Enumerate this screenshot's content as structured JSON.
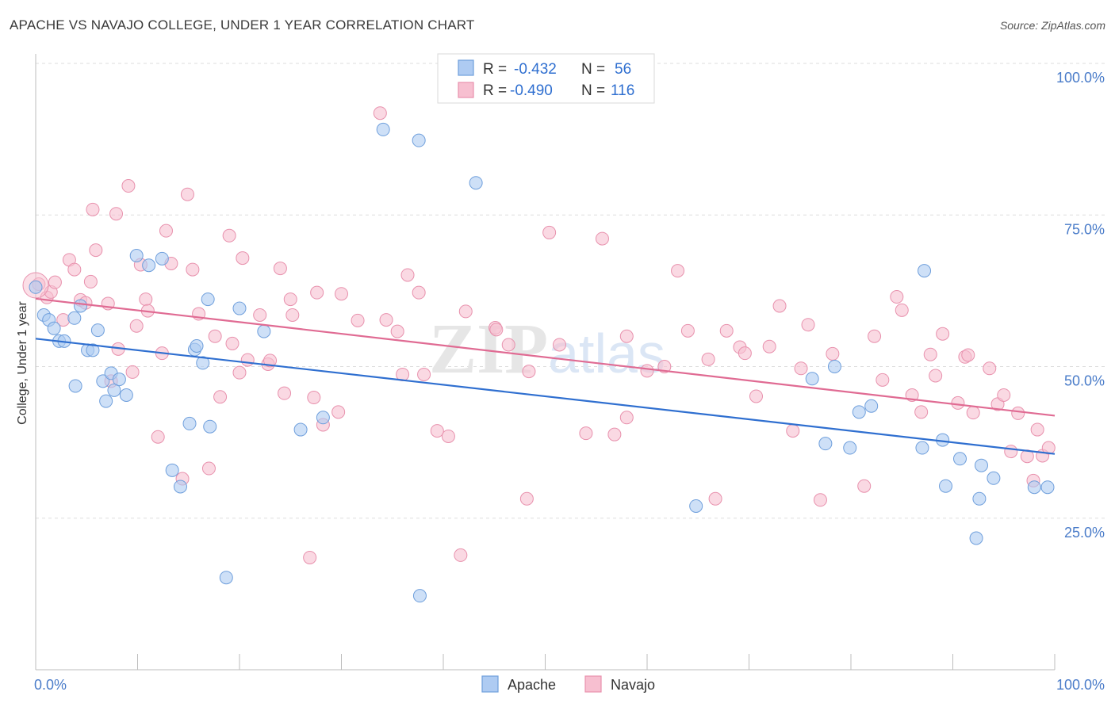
{
  "title": "APACHE VS NAVAJO COLLEGE, UNDER 1 YEAR CORRELATION CHART",
  "source": "Source: ZipAtlas.com",
  "watermark": "ZIPatlas",
  "colors": {
    "apache_fill": "#aecbf2",
    "apache_stroke": "#6f9fdc",
    "apache_line": "#2f6fd0",
    "navajo_fill": "#f7bfd0",
    "navajo_stroke": "#e891ad",
    "navajo_line": "#e06b93",
    "tick_text": "#4a7cc9",
    "grid": "#dddddd"
  },
  "legend": {
    "rows": [
      {
        "r_label": "R =",
        "r_value": "-0.432",
        "n_label": "N =",
        "n_value": "56"
      },
      {
        "r_label": "R =",
        "r_value": "-0.490",
        "n_label": "N =",
        "n_value": "116"
      }
    ]
  },
  "chart_data": {
    "type": "scatter",
    "title": "APACHE VS NAVAJO COLLEGE, UNDER 1 YEAR CORRELATION CHART",
    "xlabel": "",
    "ylabel": "College, Under 1 year",
    "xlim": [
      0,
      100
    ],
    "ylim": [
      0,
      100
    ],
    "x_tick_labels": [
      "0.0%",
      "100.0%"
    ],
    "y_tick_labels": [
      "100.0%",
      "75.0%",
      "50.0%",
      "25.0%"
    ],
    "y_ticks": [
      100,
      75,
      50,
      25
    ],
    "grid": true,
    "legend_position": "top-center",
    "series": [
      {
        "name": "Apache",
        "trend": {
          "x": [
            0,
            100
          ],
          "y": [
            54.6,
            35.6
          ]
        },
        "points": [
          [
            0.0,
            63.1
          ],
          [
            0.8,
            58.5
          ],
          [
            1.3,
            57.7
          ],
          [
            1.8,
            56.3
          ],
          [
            2.3,
            54.2
          ],
          [
            2.8,
            54.2
          ],
          [
            3.8,
            58.0
          ],
          [
            3.9,
            46.8
          ],
          [
            4.4,
            60.0
          ],
          [
            5.1,
            52.7
          ],
          [
            5.6,
            52.7
          ],
          [
            6.1,
            56.0
          ],
          [
            6.6,
            47.6
          ],
          [
            6.9,
            44.3
          ],
          [
            7.4,
            48.9
          ],
          [
            7.7,
            46.1
          ],
          [
            8.2,
            47.9
          ],
          [
            8.9,
            45.3
          ],
          [
            9.9,
            68.3
          ],
          [
            11.1,
            66.7
          ],
          [
            12.4,
            67.8
          ],
          [
            13.4,
            32.9
          ],
          [
            14.2,
            30.2
          ],
          [
            15.1,
            40.6
          ],
          [
            15.6,
            52.8
          ],
          [
            15.8,
            53.4
          ],
          [
            16.4,
            50.6
          ],
          [
            16.9,
            61.1
          ],
          [
            17.1,
            40.1
          ],
          [
            18.7,
            15.2
          ],
          [
            20.0,
            59.6
          ],
          [
            22.4,
            55.8
          ],
          [
            26.0,
            39.6
          ],
          [
            28.2,
            41.6
          ],
          [
            34.1,
            89.1
          ],
          [
            37.6,
            87.3
          ],
          [
            37.7,
            12.2
          ],
          [
            43.2,
            80.3
          ],
          [
            64.8,
            27.0
          ],
          [
            76.2,
            48.0
          ],
          [
            77.5,
            37.3
          ],
          [
            78.4,
            50.0
          ],
          [
            79.9,
            36.6
          ],
          [
            80.8,
            42.5
          ],
          [
            82.0,
            43.5
          ],
          [
            87.0,
            36.6
          ],
          [
            87.2,
            65.8
          ],
          [
            89.0,
            37.9
          ],
          [
            89.3,
            30.3
          ],
          [
            90.7,
            34.8
          ],
          [
            92.3,
            21.7
          ],
          [
            92.6,
            28.2
          ],
          [
            92.8,
            33.7
          ],
          [
            94.0,
            31.6
          ],
          [
            98.0,
            30.1
          ],
          [
            99.3,
            30.1
          ]
        ]
      },
      {
        "name": "Navajo",
        "trend": {
          "x": [
            0,
            100
          ],
          "y": [
            61.2,
            41.9
          ]
        },
        "points": [
          [
            0.3,
            63.6
          ],
          [
            1.1,
            61.4
          ],
          [
            1.5,
            62.3
          ],
          [
            1.9,
            63.9
          ],
          [
            2.7,
            57.7
          ],
          [
            3.3,
            67.6
          ],
          [
            3.8,
            66.0
          ],
          [
            4.4,
            61.0
          ],
          [
            4.9,
            60.5
          ],
          [
            5.4,
            64.0
          ],
          [
            5.6,
            75.9
          ],
          [
            5.9,
            69.2
          ],
          [
            7.1,
            60.4
          ],
          [
            7.4,
            47.6
          ],
          [
            7.9,
            75.2
          ],
          [
            8.1,
            52.9
          ],
          [
            9.1,
            79.8
          ],
          [
            9.5,
            49.1
          ],
          [
            9.9,
            56.7
          ],
          [
            10.3,
            66.8
          ],
          [
            10.8,
            61.1
          ],
          [
            11.0,
            59.2
          ],
          [
            12.0,
            38.4
          ],
          [
            12.4,
            52.2
          ],
          [
            12.8,
            72.4
          ],
          [
            13.3,
            67.0
          ],
          [
            14.4,
            31.5
          ],
          [
            14.9,
            78.4
          ],
          [
            15.4,
            66.0
          ],
          [
            16.0,
            58.7
          ],
          [
            17.0,
            33.2
          ],
          [
            17.6,
            55.0
          ],
          [
            18.1,
            45.0
          ],
          [
            19.0,
            71.6
          ],
          [
            20.0,
            49.0
          ],
          [
            20.3,
            67.9
          ],
          [
            20.8,
            51.1
          ],
          [
            22.0,
            58.5
          ],
          [
            22.8,
            50.4
          ],
          [
            24.0,
            66.2
          ],
          [
            24.4,
            45.6
          ],
          [
            25.0,
            61.1
          ],
          [
            25.2,
            58.5
          ],
          [
            26.9,
            18.5
          ],
          [
            27.3,
            44.9
          ],
          [
            27.6,
            62.2
          ],
          [
            28.2,
            40.4
          ],
          [
            29.7,
            42.5
          ],
          [
            31.6,
            57.6
          ],
          [
            33.8,
            91.8
          ],
          [
            34.4,
            57.7
          ],
          [
            35.5,
            55.8
          ],
          [
            36.0,
            48.7
          ],
          [
            36.5,
            65.1
          ],
          [
            37.6,
            62.2
          ],
          [
            38.1,
            48.7
          ],
          [
            39.4,
            39.4
          ],
          [
            40.5,
            38.5
          ],
          [
            41.7,
            18.9
          ],
          [
            42.2,
            59.1
          ],
          [
            45.1,
            56.4
          ],
          [
            45.2,
            56.1
          ],
          [
            46.4,
            53.6
          ],
          [
            48.2,
            28.2
          ],
          [
            48.4,
            49.2
          ],
          [
            50.4,
            72.1
          ],
          [
            51.4,
            53.6
          ],
          [
            55.6,
            71.1
          ],
          [
            56.8,
            38.8
          ],
          [
            58.0,
            55.0
          ],
          [
            58.0,
            41.6
          ],
          [
            61.7,
            50.0
          ],
          [
            63.0,
            65.8
          ],
          [
            64.0,
            55.9
          ],
          [
            66.7,
            28.2
          ],
          [
            67.8,
            55.9
          ],
          [
            69.1,
            53.2
          ],
          [
            69.6,
            52.2
          ],
          [
            70.7,
            45.1
          ],
          [
            72.0,
            53.3
          ],
          [
            73.0,
            60.0
          ],
          [
            74.3,
            39.4
          ],
          [
            75.1,
            49.7
          ],
          [
            75.8,
            56.9
          ],
          [
            77.0,
            28.0
          ],
          [
            78.2,
            52.1
          ],
          [
            81.3,
            30.3
          ],
          [
            82.3,
            55.0
          ],
          [
            83.1,
            47.8
          ],
          [
            84.5,
            61.5
          ],
          [
            85.0,
            59.3
          ],
          [
            86.0,
            45.3
          ],
          [
            86.9,
            42.5
          ],
          [
            87.8,
            52.0
          ],
          [
            88.3,
            48.5
          ],
          [
            89.0,
            55.4
          ],
          [
            90.5,
            44.0
          ],
          [
            91.2,
            51.6
          ],
          [
            91.5,
            51.9
          ],
          [
            92.0,
            42.4
          ],
          [
            93.6,
            49.7
          ],
          [
            94.4,
            43.8
          ],
          [
            95.0,
            45.3
          ],
          [
            95.7,
            36.0
          ],
          [
            96.4,
            42.3
          ],
          [
            97.3,
            35.2
          ],
          [
            97.9,
            31.2
          ],
          [
            98.3,
            39.6
          ],
          [
            98.8,
            35.3
          ],
          [
            99.4,
            36.6
          ],
          [
            66.0,
            51.2
          ],
          [
            60.0,
            49.3
          ],
          [
            54.0,
            39.0
          ],
          [
            30.0,
            62.0
          ],
          [
            23.0,
            51.0
          ],
          [
            19.3,
            53.8
          ]
        ]
      }
    ]
  }
}
